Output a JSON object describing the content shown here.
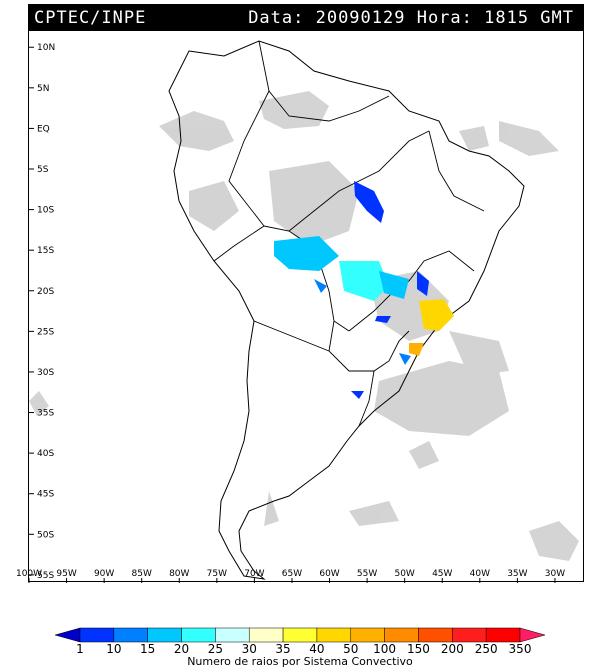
{
  "header": {
    "source": "CPTEC/INPE",
    "datetime": "Data: 20090129 Hora: 1815 GMT"
  },
  "map": {
    "lat_ticks": [
      "10N",
      "5N",
      "EQ",
      "5S",
      "10S",
      "15S",
      "20S",
      "25S",
      "30S",
      "35S",
      "40S",
      "45S",
      "50S",
      "55S"
    ],
    "lon_ticks": [
      "100W",
      "95W",
      "90W",
      "85W",
      "80W",
      "75W",
      "70W",
      "65W",
      "60W",
      "55W",
      "50W",
      "45W",
      "40W",
      "35W",
      "30W"
    ],
    "lat_range": [
      -56,
      12
    ],
    "lon_range": [
      -100,
      -26
    ]
  },
  "legend": {
    "values": [
      "1",
      "10",
      "15",
      "20",
      "25",
      "30",
      "35",
      "40",
      "50",
      "100",
      "150",
      "200",
      "250",
      "350"
    ],
    "colors": [
      "#0000c8",
      "#0033ff",
      "#0080ff",
      "#00c8ff",
      "#33ffff",
      "#c8ffff",
      "#ffffc8",
      "#ffff33",
      "#ffd700",
      "#ffb000",
      "#ff8c00",
      "#ff5000",
      "#ff1e1e",
      "#ff0000",
      "#ff1e64"
    ],
    "caption": "Numero de raios por Sistema Convectivo"
  }
}
